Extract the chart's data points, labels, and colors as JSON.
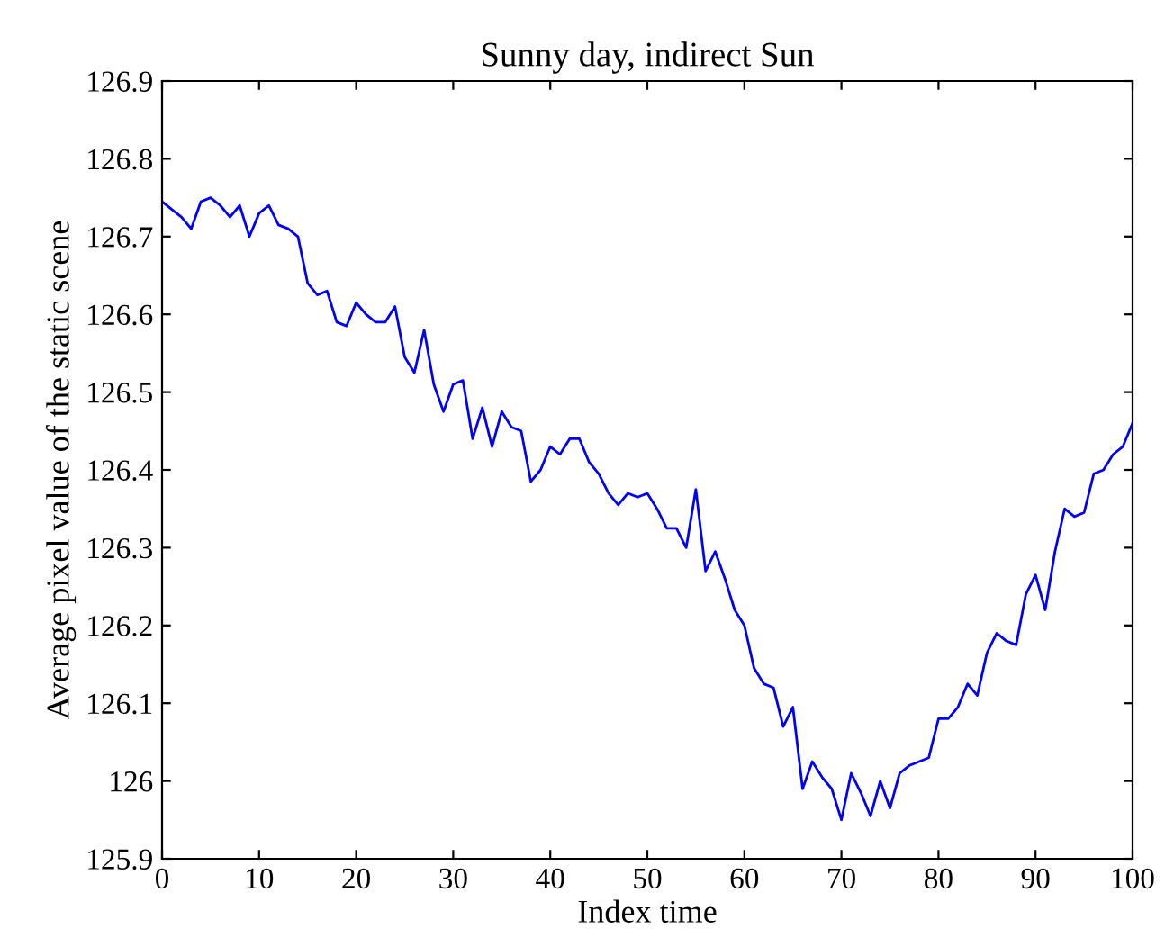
{
  "chart_data": {
    "type": "line",
    "title": "Sunny day, indirect Sun",
    "xlabel": "Index time",
    "ylabel": "Average pixel value of the static scene",
    "xlim": [
      0,
      100
    ],
    "xticks": [
      0,
      10,
      20,
      30,
      40,
      50,
      60,
      70,
      80,
      90,
      100
    ],
    "ylim": [
      125.9,
      126.9
    ],
    "yticks": [
      {
        "value": 125.9,
        "label": "125.9"
      },
      {
        "value": 126,
        "label": "126"
      },
      {
        "value": 126.1,
        "label": "126.1"
      },
      {
        "value": 126.2,
        "label": "126.2"
      },
      {
        "value": 126.3,
        "label": "126.3"
      },
      {
        "value": 126.4,
        "label": "126.4"
      },
      {
        "value": 126.5,
        "label": "126.5"
      },
      {
        "value": 126.6,
        "label": "126.6"
      },
      {
        "value": 126.7,
        "label": "126.7"
      },
      {
        "value": 126.8,
        "label": "126.8"
      },
      {
        "value": 126.9,
        "label": "126.9"
      }
    ],
    "grid": false,
    "marker": "none",
    "line_style": "solid",
    "x": [
      0,
      1,
      2,
      3,
      4,
      5,
      6,
      7,
      8,
      9,
      10,
      11,
      12,
      13,
      14,
      15,
      16,
      17,
      18,
      19,
      20,
      21,
      22,
      23,
      24,
      25,
      26,
      27,
      28,
      29,
      30,
      31,
      32,
      33,
      34,
      35,
      36,
      37,
      38,
      39,
      40,
      41,
      42,
      43,
      44,
      45,
      46,
      47,
      48,
      49,
      50,
      51,
      52,
      53,
      54,
      55,
      56,
      57,
      58,
      59,
      60,
      61,
      62,
      63,
      64,
      65,
      66,
      67,
      68,
      69,
      70,
      71,
      72,
      73,
      74,
      75,
      76,
      77,
      78,
      79,
      80,
      81,
      82,
      83,
      84,
      85,
      86,
      87,
      88,
      89,
      90,
      91,
      92,
      93,
      94,
      95,
      96,
      97,
      98,
      99,
      100
    ],
    "series": [
      {
        "color": "#0000ff",
        "values": [
          126.745,
          126.735,
          126.725,
          126.71,
          126.745,
          126.75,
          126.74,
          126.725,
          126.74,
          126.7,
          126.73,
          126.74,
          126.715,
          126.71,
          126.7,
          126.64,
          126.625,
          126.63,
          126.59,
          126.585,
          126.615,
          126.6,
          126.59,
          126.59,
          126.61,
          126.545,
          126.525,
          126.58,
          126.51,
          126.475,
          126.51,
          126.515,
          126.44,
          126.48,
          126.43,
          126.475,
          126.455,
          126.45,
          126.385,
          126.4,
          126.43,
          126.42,
          126.44,
          126.44,
          126.41,
          126.395,
          126.37,
          126.355,
          126.37,
          126.365,
          126.37,
          126.35,
          126.325,
          126.325,
          126.3,
          126.375,
          126.27,
          126.295,
          126.26,
          126.22,
          126.2,
          126.145,
          126.125,
          126.12,
          126.07,
          126.095,
          125.99,
          126.025,
          126.005,
          125.99,
          125.95,
          126.01,
          125.985,
          125.955,
          126.0,
          125.965,
          126.01,
          126.02,
          126.025,
          126.03,
          126.08,
          126.08,
          126.095,
          126.125,
          126.11,
          126.165,
          126.19,
          126.18,
          126.175,
          126.24,
          126.265,
          126.22,
          126.295,
          126.35,
          126.34,
          126.345,
          126.395,
          126.4,
          126.42,
          126.43,
          126.46
        ]
      }
    ]
  }
}
